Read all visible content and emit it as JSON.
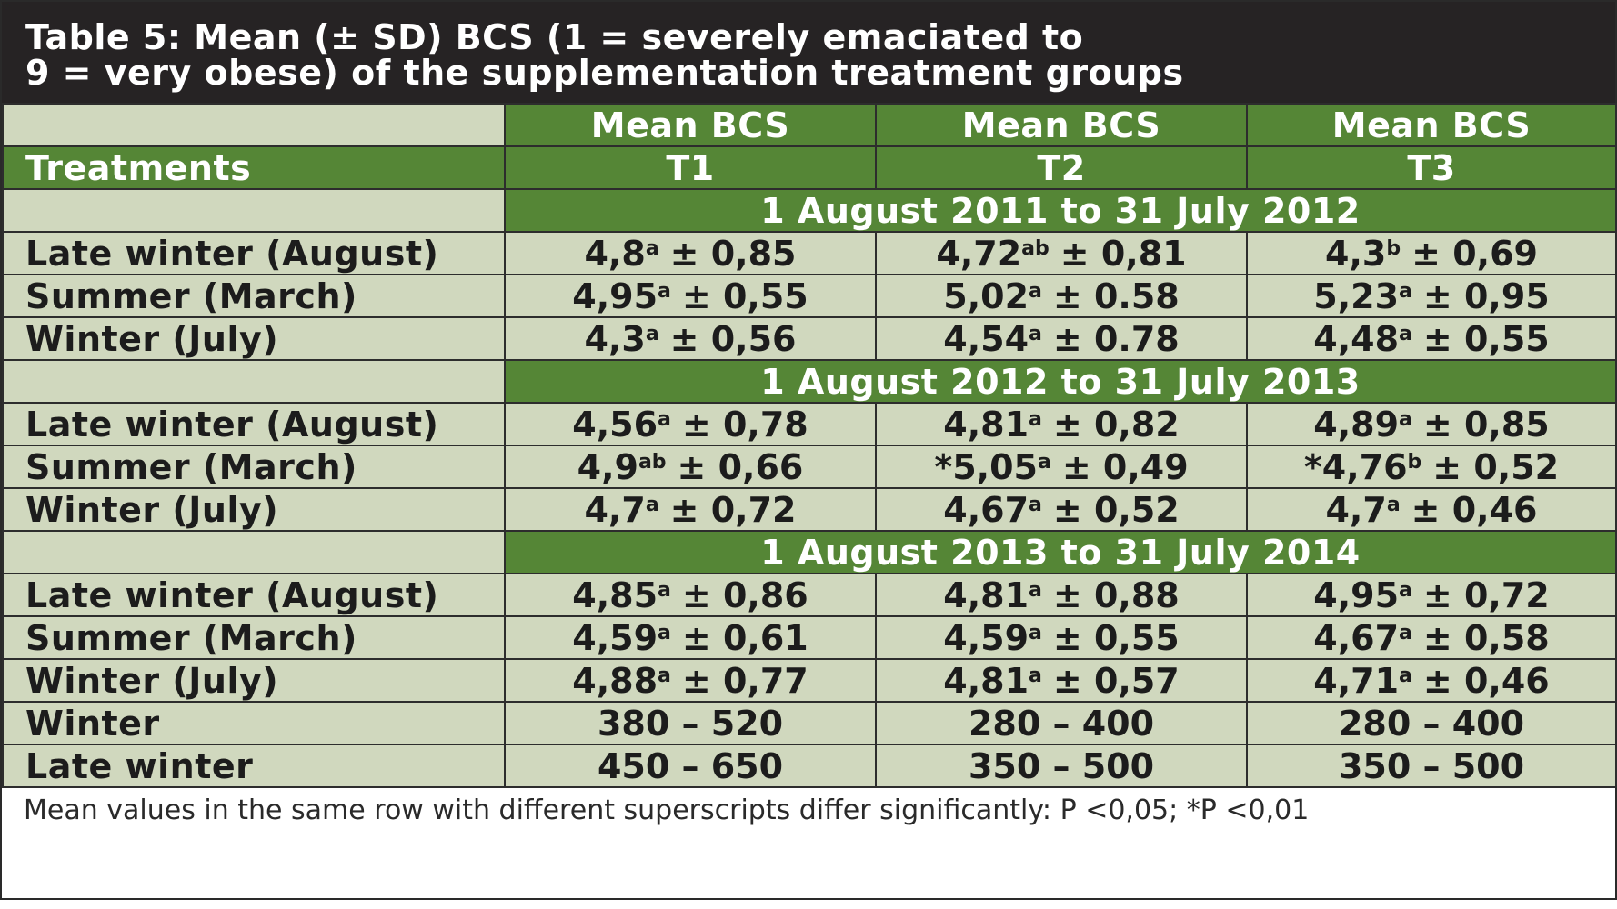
{
  "title": {
    "line1": "Table 5: Mean (± SD) BCS (1 = severely emaciated to",
    "line2": "9 = very obese) of the supplementation treatment groups"
  },
  "header": {
    "row1": [
      "Mean BCS",
      "Mean BCS",
      "Mean BCS"
    ],
    "treatments_label": "Treatments",
    "row2": [
      "T1",
      "T2",
      "T3"
    ]
  },
  "sections": [
    {
      "period": "1 August 2011 to 31 July 2012",
      "rows": [
        {
          "label": "Late winter (August)",
          "cells": [
            {
              "pre": "",
              "mean": "4,8",
              "sup": "a",
              "sd": "± 0,85"
            },
            {
              "pre": "",
              "mean": "4,72",
              "sup": "ab",
              "sd": "± 0,81"
            },
            {
              "pre": "",
              "mean": "4,3",
              "sup": "b",
              "sd": "± 0,69"
            }
          ]
        },
        {
          "label": "Summer (March)",
          "cells": [
            {
              "pre": "",
              "mean": "4,95",
              "sup": "a",
              "sd": "± 0,55"
            },
            {
              "pre": "",
              "mean": "5,02",
              "sup": "a",
              "sd": "± 0.58"
            },
            {
              "pre": "",
              "mean": "5,23",
              "sup": "a",
              "sd": "± 0,95"
            }
          ]
        },
        {
          "label": "Winter (July)",
          "cells": [
            {
              "pre": "",
              "mean": "4,3",
              "sup": "a",
              "sd": "± 0,56"
            },
            {
              "pre": "",
              "mean": "4,54",
              "sup": "a",
              "sd": "± 0.78"
            },
            {
              "pre": "",
              "mean": "4,48",
              "sup": "a",
              "sd": "± 0,55"
            }
          ]
        }
      ]
    },
    {
      "period": "1 August 2012 to 31 July 2013",
      "rows": [
        {
          "label": "Late winter (August)",
          "cells": [
            {
              "pre": "",
              "mean": "4,56",
              "sup": "a",
              "sd": "± 0,78"
            },
            {
              "pre": "",
              "mean": "4,81",
              "sup": "a",
              "sd": "± 0,82"
            },
            {
              "pre": "",
              "mean": "4,89",
              "sup": "a",
              "sd": "± 0,85"
            }
          ]
        },
        {
          "label": "Summer (March)",
          "cells": [
            {
              "pre": "",
              "mean": "4,9",
              "sup": "ab",
              "sd": "± 0,66"
            },
            {
              "pre": "*",
              "mean": "5,05",
              "sup": "a",
              "sd": "± 0,49"
            },
            {
              "pre": "*",
              "mean": "4,76",
              "sup": "b",
              "sd": "± 0,52"
            }
          ]
        },
        {
          "label": "Winter (July)",
          "cells": [
            {
              "pre": "",
              "mean": "4,7",
              "sup": "a",
              "sd": "± 0,72"
            },
            {
              "pre": "",
              "mean": "4,67",
              "sup": "a",
              "sd": "± 0,52"
            },
            {
              "pre": "",
              "mean": "4,7",
              "sup": "a",
              "sd": "± 0,46"
            }
          ]
        }
      ]
    },
    {
      "period": "1 August 2013 to 31 July 2014",
      "rows": [
        {
          "label": "Late winter (August)",
          "cells": [
            {
              "pre": "",
              "mean": "4,85",
              "sup": "a",
              "sd": "± 0,86"
            },
            {
              "pre": "",
              "mean": "4,81",
              "sup": "a",
              "sd": "± 0,88"
            },
            {
              "pre": "",
              "mean": "4,95",
              "sup": "a",
              "sd": "± 0,72"
            }
          ]
        },
        {
          "label": "Summer (March)",
          "cells": [
            {
              "pre": "",
              "mean": "4,59",
              "sup": "a",
              "sd": "± 0,61"
            },
            {
              "pre": "",
              "mean": "4,59",
              "sup": "a",
              "sd": "± 0,55"
            },
            {
              "pre": "",
              "mean": "4,67",
              "sup": "a",
              "sd": "± 0,58"
            }
          ]
        },
        {
          "label": "Winter (July)",
          "cells": [
            {
              "pre": "",
              "mean": "4,88",
              "sup": "a",
              "sd": "± 0,77"
            },
            {
              "pre": "",
              "mean": "4,81",
              "sup": "a",
              "sd": "± 0,57"
            },
            {
              "pre": "",
              "mean": "4,71",
              "sup": "a",
              "sd": "± 0,46"
            }
          ]
        }
      ]
    }
  ],
  "extra_rows": [
    {
      "label": "Winter",
      "values": [
        "380 – 520",
        "280 – 400",
        "280 – 400"
      ]
    },
    {
      "label": "Late winter",
      "values": [
        "450 – 650",
        "350 – 500",
        "350 – 500"
      ]
    }
  ],
  "footnote": "Mean values in the same row with different superscripts differ significantly: P <0,05; *P <0,01",
  "colors": {
    "title_bg": "#262324",
    "header_green": "#558636",
    "cell_beige": "#d0d8be",
    "border": "#2d2d2d"
  }
}
